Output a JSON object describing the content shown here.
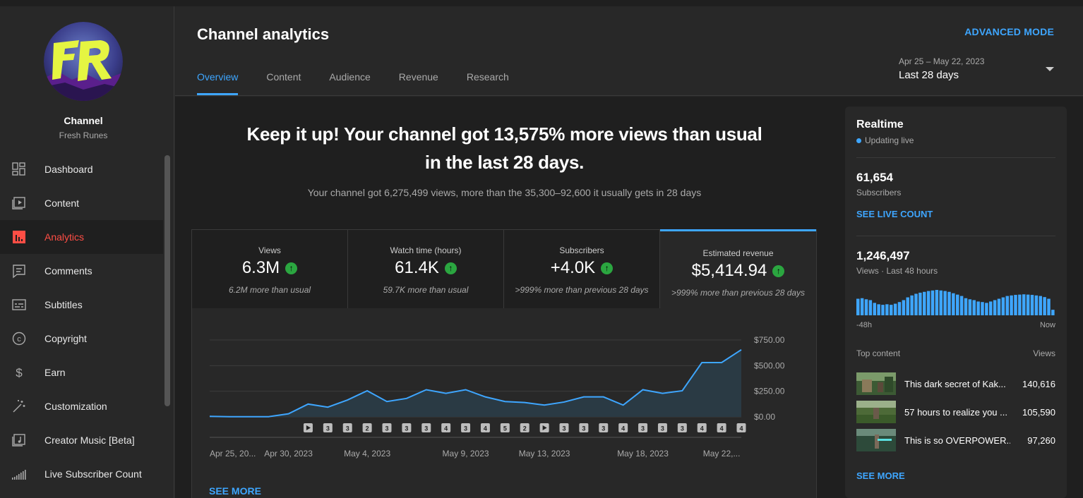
{
  "sidebar": {
    "avatar_text": "FR",
    "channel_title": "Channel",
    "channel_name": "Fresh Runes",
    "items": [
      {
        "label": "Dashboard",
        "icon": "dashboard-icon"
      },
      {
        "label": "Content",
        "icon": "content-icon"
      },
      {
        "label": "Analytics",
        "icon": "analytics-icon",
        "active": true
      },
      {
        "label": "Comments",
        "icon": "comments-icon"
      },
      {
        "label": "Subtitles",
        "icon": "subtitles-icon"
      },
      {
        "label": "Copyright",
        "icon": "copyright-icon"
      },
      {
        "label": "Earn",
        "icon": "earn-icon"
      },
      {
        "label": "Customization",
        "icon": "customization-icon"
      },
      {
        "label": "Creator Music [Beta]",
        "icon": "music-icon"
      },
      {
        "label": "Live Subscriber Count",
        "icon": "signal-icon"
      }
    ]
  },
  "header": {
    "title": "Channel analytics",
    "advanced_mode": "ADVANCED MODE",
    "tabs": [
      "Overview",
      "Content",
      "Audience",
      "Revenue",
      "Research"
    ],
    "date_range": "Apr 25 – May 22, 2023",
    "date_label": "Last 28 days"
  },
  "main": {
    "headline_1": "Keep it up! Your channel got 13,575% more views than usual",
    "headline_2": "in the last 28 days.",
    "subline": "Your channel got 6,275,499 views, more than the 35,300–92,600 it usually gets in 28 days",
    "metrics": [
      {
        "label": "Views",
        "value": "6.3M",
        "note": "6.2M more than usual"
      },
      {
        "label": "Watch time (hours)",
        "value": "61.4K",
        "note": "59.7K more than usual"
      },
      {
        "label": "Subscribers",
        "value": "+4.0K",
        "note": ">999% more than previous 28 days"
      },
      {
        "label": "Estimated revenue",
        "value": "$5,414.94",
        "note": ">999% more than previous 28 days"
      }
    ],
    "see_more": "SEE MORE"
  },
  "chart_data": {
    "type": "area",
    "y_tick_labels": [
      "$750.00",
      "$500.00",
      "$250.00",
      "$0.00"
    ],
    "ylim": [
      0,
      750
    ],
    "x_tick_labels": [
      {
        "label": "Apr 25, 20...",
        "index": 0
      },
      {
        "label": "Apr 30, 2023",
        "index": 4
      },
      {
        "label": "May 4, 2023",
        "index": 8
      },
      {
        "label": "May 9, 2023",
        "index": 13
      },
      {
        "label": "May 13, 2023",
        "index": 17
      },
      {
        "label": "May 18, 2023",
        "index": 22
      },
      {
        "label": "May 22,...",
        "index": 26
      }
    ],
    "values": [
      5,
      2,
      2,
      2,
      30,
      125,
      95,
      165,
      255,
      150,
      180,
      265,
      230,
      265,
      195,
      150,
      140,
      115,
      145,
      195,
      195,
      115,
      265,
      230,
      255,
      530,
      530,
      655
    ],
    "markers": [
      "play",
      "3",
      "3",
      "2",
      "3",
      "3",
      "3",
      "4",
      "3",
      "4",
      "5",
      "2",
      "play",
      "3",
      "3",
      "3",
      "4",
      "3",
      "3",
      "3",
      "4",
      "4",
      "4"
    ],
    "line_color": "#3ea6ff",
    "fill_color": "#2a3a44"
  },
  "realtime": {
    "title": "Realtime",
    "status": "Updating live",
    "subscribers": "61,654",
    "subscribers_label": "Subscribers",
    "see_live_count": "SEE LIVE COUNT",
    "views": "1,246,497",
    "views_label": "Views · Last 48 hours",
    "bar_values": [
      60,
      62,
      58,
      55,
      45,
      40,
      38,
      40,
      38,
      42,
      48,
      55,
      65,
      72,
      78,
      82,
      85,
      88,
      90,
      92,
      90,
      88,
      85,
      80,
      75,
      70,
      62,
      58,
      55,
      50,
      48,
      45,
      50,
      55,
      60,
      65,
      70,
      72,
      74,
      75,
      76,
      75,
      74,
      72,
      70,
      66,
      60,
      20
    ],
    "bar_color": "#3ea6ff",
    "axis_start": "-48h",
    "axis_end": "Now",
    "top_content_label": "Top content",
    "views_col_label": "Views",
    "top_content": [
      {
        "title": "This dark secret of Kak...",
        "views": "140,616"
      },
      {
        "title": "57 hours to realize you ...",
        "views": "105,590"
      },
      {
        "title": "This is so OVERPOWER...",
        "views": "97,260"
      }
    ],
    "see_more": "SEE MORE"
  }
}
